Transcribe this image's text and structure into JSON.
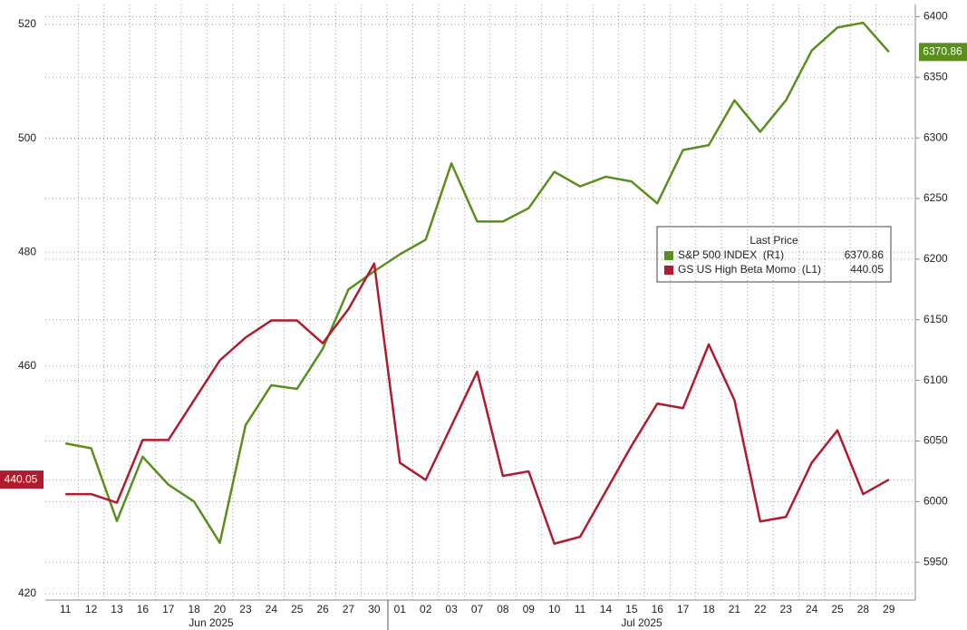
{
  "chart_data": {
    "type": "line",
    "categories": [
      "11",
      "12",
      "13",
      "16",
      "17",
      "18",
      "20",
      "23",
      "24",
      "25",
      "26",
      "27",
      "30",
      "01",
      "02",
      "03",
      "07",
      "08",
      "09",
      "10",
      "11",
      "14",
      "15",
      "16",
      "17",
      "18",
      "21",
      "22",
      "23",
      "24",
      "25",
      "28",
      "29"
    ],
    "months": [
      "Jun 2025",
      "Jul 2025"
    ],
    "legend_title": "Last Price",
    "series": [
      {
        "name": "S&P 500 INDEX  (R1)",
        "color": "#5a8f1e",
        "axis": "y2",
        "values": [
          6048,
          6044,
          5984,
          6037,
          6014,
          6000,
          5966,
          6063,
          6096,
          6093,
          6126,
          6175,
          6190,
          6204,
          6216,
          6279,
          6231,
          6231,
          6242,
          6272,
          6260,
          6268,
          6264,
          6246,
          6290,
          6294,
          6331,
          6305,
          6331,
          6372,
          6391,
          6395,
          6370.86
        ]
      },
      {
        "name": "GS US High Beta Momo  (L1)",
        "color": "#b01c2e",
        "axis": "y",
        "values": [
          437.5,
          437.5,
          436,
          447,
          447,
          454,
          461,
          465,
          468,
          468,
          464,
          470,
          478,
          443,
          440,
          449.5,
          459,
          440.7,
          441.5,
          428.8,
          430,
          438,
          446,
          453.4,
          452.6,
          463.8,
          454,
          432.7,
          433.5,
          443,
          448.7,
          437.5,
          440.05
        ]
      }
    ],
    "ylim": [
      420,
      523.5
    ],
    "yticks": [
      420,
      440,
      460,
      480,
      500,
      520
    ],
    "y2lim": [
      5924,
      6410
    ],
    "y2ticks": [
      5950,
      6000,
      6050,
      6100,
      6150,
      6200,
      6250,
      6300,
      6350,
      6400
    ],
    "grid": true
  }
}
